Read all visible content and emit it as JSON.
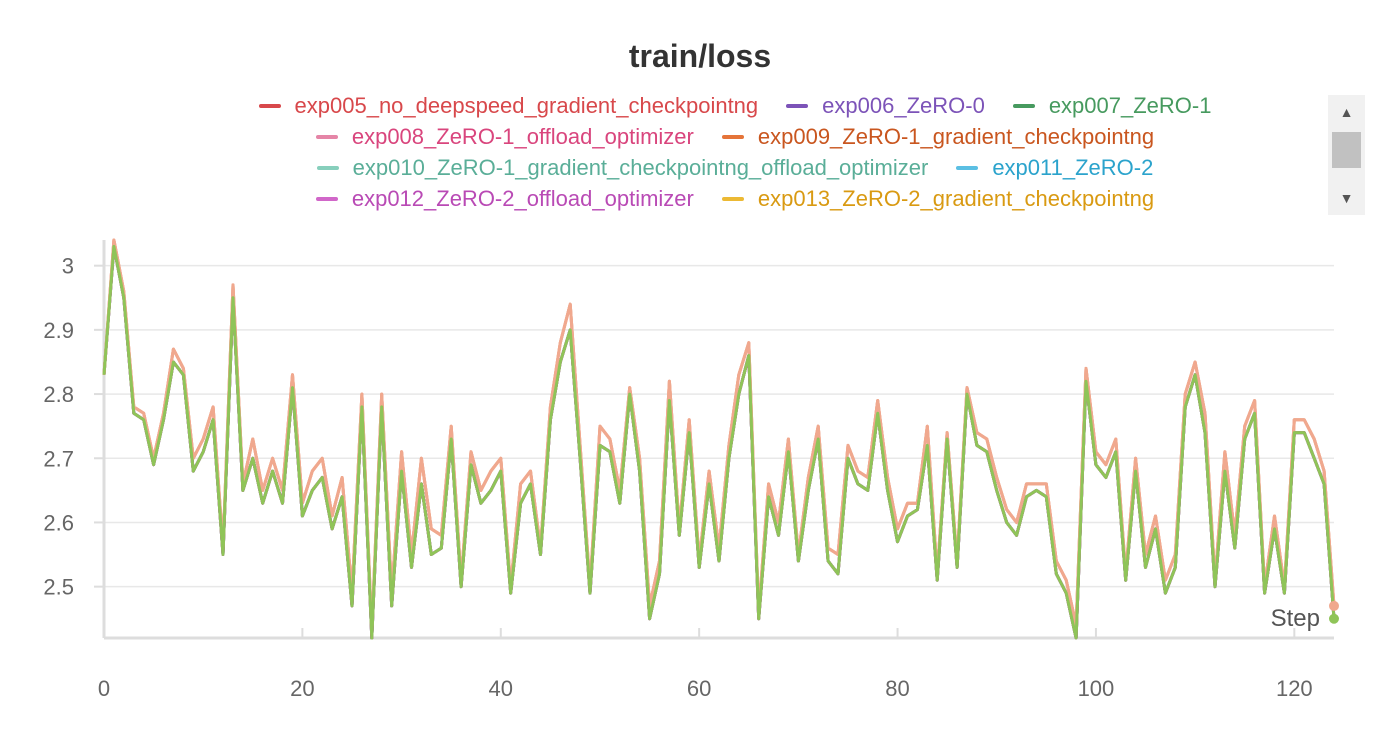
{
  "chart_data": {
    "type": "line",
    "title": "train/loss",
    "xlabel": "Step",
    "ylabel": "",
    "xlim": [
      0,
      124
    ],
    "ylim": [
      2.42,
      3.04
    ],
    "xticks": [
      0,
      20,
      40,
      60,
      80,
      100,
      120
    ],
    "yticks": [
      2.5,
      2.6,
      2.7,
      2.8,
      2.9,
      3
    ],
    "grid": true,
    "legend_position": "top",
    "series": [
      {
        "name": "exp005_no_deepspeed_gradient_checkpointng",
        "color": "#d8484b"
      },
      {
        "name": "exp006_ZeRO-0",
        "color": "#7c53b8"
      },
      {
        "name": "exp007_ZeRO-1",
        "color": "#479a5f"
      },
      {
        "name": "exp008_ZeRO-1_offload_optimizer",
        "color": "#e585a7"
      },
      {
        "name": "exp009_ZeRO-1_gradient_checkpointng",
        "color": "#e57439"
      },
      {
        "name": "exp010_ZeRO-1_gradient_checkpointng_offload_optimizer",
        "color": "#87cfbc"
      },
      {
        "name": "exp011_ZeRO-2",
        "color": "#5bbfe3"
      },
      {
        "name": "exp012_ZeRO-2_offload_optimizer",
        "color": "#d167c9"
      },
      {
        "name": "exp013_ZeRO-2_gradient_checkpointng",
        "color": "#ecb934"
      }
    ],
    "legend_text_colors": [
      "#d8484b",
      "#7c53b8",
      "#479a5f",
      "#d9457d",
      "#c9561f",
      "#5aae98",
      "#2ba3cc",
      "#b94ab5",
      "#d99a12"
    ],
    "x": [
      0,
      1,
      2,
      3,
      4,
      5,
      6,
      7,
      8,
      9,
      10,
      11,
      12,
      13,
      14,
      15,
      16,
      17,
      18,
      19,
      20,
      21,
      22,
      23,
      24,
      25,
      26,
      27,
      28,
      29,
      30,
      31,
      32,
      33,
      34,
      35,
      36,
      37,
      38,
      39,
      40,
      41,
      42,
      43,
      44,
      45,
      46,
      47,
      48,
      49,
      50,
      51,
      52,
      53,
      54,
      55,
      56,
      57,
      58,
      59,
      60,
      61,
      62,
      63,
      64,
      65,
      66,
      67,
      68,
      69,
      70,
      71,
      72,
      73,
      74,
      75,
      76,
      77,
      78,
      79,
      80,
      81,
      82,
      83,
      84,
      85,
      86,
      87,
      88,
      89,
      90,
      91,
      92,
      93,
      94,
      95,
      96,
      97,
      98,
      99,
      100,
      101,
      102,
      103,
      104,
      105,
      106,
      107,
      108,
      109,
      110,
      111,
      112,
      113,
      114,
      115,
      116,
      117,
      118,
      119,
      120,
      121,
      122,
      123,
      124
    ],
    "values_top": [
      2.83,
      3.04,
      2.96,
      2.78,
      2.77,
      2.7,
      2.77,
      2.87,
      2.84,
      2.7,
      2.73,
      2.78,
      2.56,
      2.97,
      2.66,
      2.73,
      2.65,
      2.7,
      2.65,
      2.83,
      2.63,
      2.68,
      2.7,
      2.61,
      2.67,
      2.49,
      2.8,
      2.43,
      2.8,
      2.49,
      2.71,
      2.55,
      2.7,
      2.59,
      2.58,
      2.75,
      2.51,
      2.71,
      2.65,
      2.68,
      2.7,
      2.5,
      2.66,
      2.68,
      2.56,
      2.78,
      2.88,
      2.94,
      2.72,
      2.5,
      2.75,
      2.73,
      2.65,
      2.81,
      2.7,
      2.47,
      2.54,
      2.82,
      2.59,
      2.76,
      2.54,
      2.68,
      2.56,
      2.72,
      2.83,
      2.88,
      2.46,
      2.66,
      2.6,
      2.73,
      2.55,
      2.67,
      2.75,
      2.56,
      2.55,
      2.72,
      2.68,
      2.67,
      2.79,
      2.67,
      2.59,
      2.63,
      2.63,
      2.75,
      2.52,
      2.74,
      2.54,
      2.81,
      2.74,
      2.73,
      2.67,
      2.62,
      2.6,
      2.66,
      2.66,
      2.66,
      2.54,
      2.51,
      2.44,
      2.84,
      2.71,
      2.69,
      2.73,
      2.52,
      2.7,
      2.55,
      2.61,
      2.51,
      2.55,
      2.8,
      2.85,
      2.77,
      2.51,
      2.71,
      2.58,
      2.75,
      2.79,
      2.5,
      2.61,
      2.5,
      2.76,
      2.76,
      2.73,
      2.68,
      2.47
    ],
    "values_bottom": [
      2.83,
      3.03,
      2.95,
      2.77,
      2.76,
      2.69,
      2.76,
      2.85,
      2.83,
      2.68,
      2.71,
      2.76,
      2.55,
      2.95,
      2.65,
      2.7,
      2.63,
      2.68,
      2.63,
      2.81,
      2.61,
      2.65,
      2.67,
      2.59,
      2.64,
      2.47,
      2.78,
      2.42,
      2.78,
      2.47,
      2.68,
      2.53,
      2.66,
      2.55,
      2.56,
      2.73,
      2.5,
      2.69,
      2.63,
      2.65,
      2.68,
      2.49,
      2.63,
      2.66,
      2.55,
      2.76,
      2.85,
      2.9,
      2.7,
      2.49,
      2.72,
      2.71,
      2.63,
      2.8,
      2.68,
      2.45,
      2.52,
      2.79,
      2.58,
      2.74,
      2.53,
      2.66,
      2.54,
      2.7,
      2.8,
      2.86,
      2.45,
      2.64,
      2.58,
      2.71,
      2.54,
      2.65,
      2.73,
      2.54,
      2.52,
      2.7,
      2.66,
      2.65,
      2.77,
      2.65,
      2.57,
      2.61,
      2.62,
      2.72,
      2.51,
      2.73,
      2.53,
      2.8,
      2.72,
      2.71,
      2.65,
      2.6,
      2.58,
      2.64,
      2.65,
      2.64,
      2.52,
      2.49,
      2.42,
      2.82,
      2.69,
      2.67,
      2.71,
      2.51,
      2.68,
      2.53,
      2.59,
      2.49,
      2.53,
      2.78,
      2.83,
      2.74,
      2.5,
      2.68,
      2.56,
      2.73,
      2.77,
      2.49,
      2.59,
      2.49,
      2.74,
      2.74,
      2.7,
      2.66,
      2.45
    ]
  }
}
